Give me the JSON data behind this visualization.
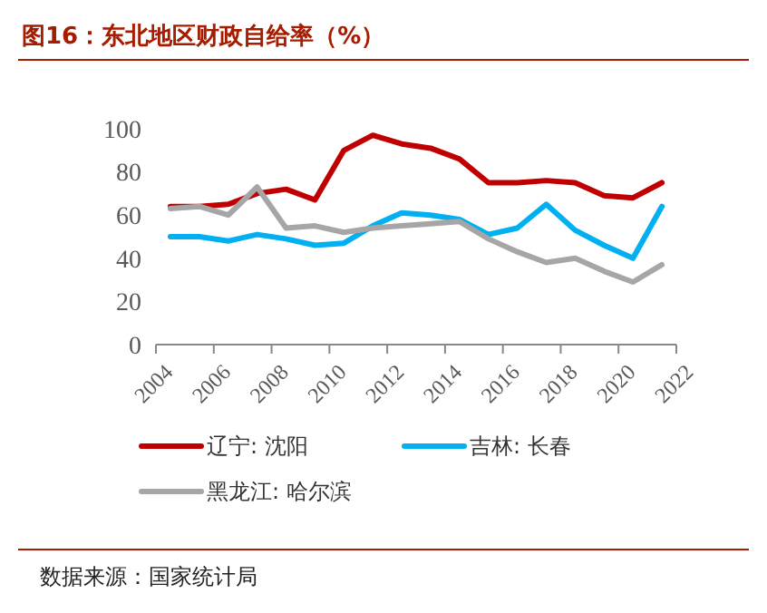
{
  "chart_data": {
    "type": "line",
    "title": "图16：东北地区财政自给率（%）",
    "annotations": [
      "数据来源：国家统计局"
    ],
    "x": [
      2004.5,
      2005.5,
      2006.5,
      2007.5,
      2008.5,
      2009.5,
      2010.5,
      2011.5,
      2012.5,
      2013.5,
      2014.5,
      2015.5,
      2016.5,
      2017.5,
      2018.5,
      2019.5,
      2020.5,
      2021.5
    ],
    "xlim": [
      2004,
      2022
    ],
    "xticks": [
      2004,
      2006,
      2008,
      2010,
      2012,
      2014,
      2016,
      2018,
      2020,
      2022
    ],
    "ylim": [
      0,
      100
    ],
    "yticks": [
      0,
      20,
      40,
      60,
      80,
      100
    ],
    "grid": false,
    "legend": "bottom",
    "marker": "none",
    "line_style": "solid",
    "series": [
      {
        "name": "辽宁: 沈阳",
        "color": "#c00000",
        "values": [
          64,
          64,
          65,
          70,
          72,
          67,
          90,
          97,
          93,
          91,
          86,
          75,
          75,
          76,
          75,
          69,
          68,
          75
        ]
      },
      {
        "name": "吉林: 长春",
        "color": "#00b0f0",
        "values": [
          50,
          50,
          48,
          51,
          49,
          46,
          47,
          55,
          61,
          60,
          58,
          51,
          54,
          65,
          53,
          46,
          40,
          64
        ]
      },
      {
        "name": "黑龙江: 哈尔滨",
        "color": "#a6a6a6",
        "values": [
          63,
          64,
          60,
          73,
          54,
          55,
          52,
          54,
          55,
          56,
          57,
          49,
          43,
          38,
          40,
          34,
          29,
          37
        ]
      }
    ]
  }
}
